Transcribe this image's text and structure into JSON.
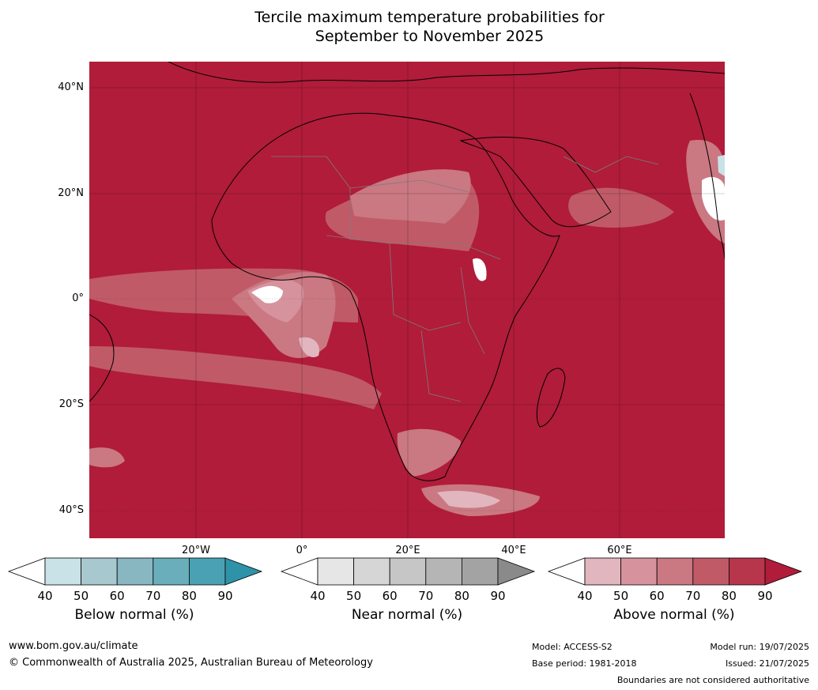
{
  "title": {
    "line1": "Tercile maximum temperature probabilities for",
    "line2": "September to November 2025"
  },
  "map": {
    "latitude_labels": [
      "40°N",
      "20°N",
      "0°",
      "20°S",
      "40°S"
    ],
    "longitude_labels": [
      "20°W",
      "0°",
      "20°E",
      "40°E",
      "60°E"
    ],
    "dominant_category": "Above normal",
    "dominant_probability_pct": 90
  },
  "colorbars": [
    {
      "label": "Below normal (%)",
      "ticks": [
        "40",
        "50",
        "60",
        "70",
        "80",
        "90"
      ],
      "colors": [
        "#ffffff",
        "#c9e2e8",
        "#a8c8cf",
        "#88b7c2",
        "#6aaebb",
        "#4aa1b3",
        "#2e93a8"
      ]
    },
    {
      "label": "Near normal (%)",
      "ticks": [
        "40",
        "50",
        "60",
        "70",
        "80",
        "90"
      ],
      "colors": [
        "#ffffff",
        "#e6e6e6",
        "#d6d6d6",
        "#c6c6c6",
        "#b5b5b5",
        "#a3a3a3",
        "#8a8a8a"
      ]
    },
    {
      "label": "Above normal (%)",
      "ticks": [
        "40",
        "50",
        "60",
        "70",
        "80",
        "90"
      ],
      "colors": [
        "#ffffff",
        "#e2b6be",
        "#d6939d",
        "#ca7882",
        "#c05a67",
        "#b8364b",
        "#b01c3a"
      ]
    }
  ],
  "footer": {
    "website": "www.bom.gov.au/climate",
    "copyright": "© Commonwealth of Australia 2025, Australian Bureau of Meteorology",
    "model": "Model: ACCESS-S2",
    "base_period": "Base period: 1981-2018",
    "model_run": "Model run: 19/07/2025",
    "issued": "Issued: 21/07/2025",
    "disclaimer": "Boundaries are not considered authoritative"
  }
}
